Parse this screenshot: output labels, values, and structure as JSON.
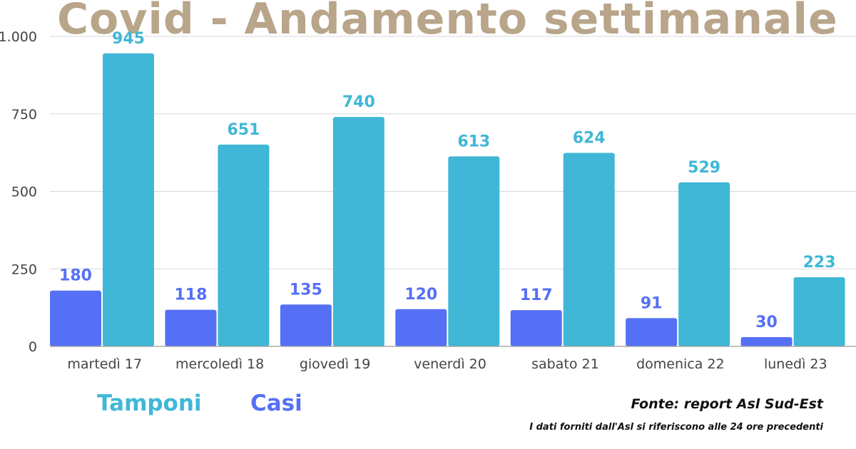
{
  "title": "Covid - Andamento settimanale",
  "legend": {
    "tamponi": "Tamponi",
    "casi": "Casi"
  },
  "source": "Fonte: report Asl Sud-Est",
  "note": "I dati forniti dall'Asl si riferiscono alle 24 ore precedenti",
  "chart_data": {
    "type": "bar",
    "title": "Covid - Andamento settimanale",
    "categories": [
      "martedì 17",
      "mercoledì 18",
      "giovedì 19",
      "venerdì 20",
      "sabato 21",
      "domenica 22",
      "lunedì 23"
    ],
    "series": [
      {
        "name": "Casi",
        "color": "#5570f5",
        "values": [
          180,
          118,
          135,
          120,
          117,
          91,
          30
        ]
      },
      {
        "name": "Tamponi",
        "color": "#40b7d6",
        "values": [
          945,
          651,
          740,
          613,
          624,
          529,
          223
        ]
      }
    ],
    "yticks": [
      0,
      250,
      500,
      750,
      1000
    ],
    "ytick_labels": [
      "0",
      "250",
      "500",
      "750",
      "1.000"
    ],
    "ylim": [
      0,
      1000
    ],
    "grid": true,
    "legend_position": "bottom-left"
  }
}
